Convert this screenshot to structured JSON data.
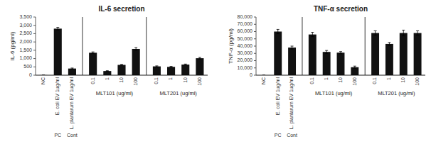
{
  "chart_data": [
    {
      "type": "bar",
      "title": "IL-6 secretion",
      "y_label": "IL-6 (pg/ml)",
      "categories": [
        "NC",
        "PC",
        "Cont",
        "0.1",
        "1",
        "10",
        "100",
        "0.1",
        "1",
        "10",
        "100"
      ],
      "long_labels": [
        null,
        "E. coli EV 1ug/ml",
        "L. plantarum EV 1ug/ml",
        null,
        null,
        null,
        null,
        null,
        null,
        null,
        null
      ],
      "category_groups": [
        null,
        null,
        null,
        "MLT101 (ug/ml)",
        "MLT101 (ug/ml)",
        "MLT101 (ug/ml)",
        "MLT101 (ug/ml)",
        "MLT201 (ug/ml)",
        "MLT201 (ug/ml)",
        "MLT201 (ug/ml)",
        "MLT201 (ug/ml)"
      ],
      "values": [
        5,
        2800,
        400,
        1350,
        250,
        620,
        1580,
        530,
        500,
        640,
        1020
      ],
      "errors": [
        0,
        80,
        30,
        50,
        20,
        30,
        80,
        30,
        30,
        30,
        50
      ],
      "color": "#111111",
      "ylim": [
        0,
        3500
      ],
      "yticks": [
        0,
        500,
        {
          "value": 1000,
          "label": "1,000"
        },
        {
          "value": 1500,
          "label": "1,500"
        },
        {
          "value": 2000,
          "label": "2,000"
        },
        {
          "value": 2500,
          "label": "2,500"
        },
        {
          "value": 3000,
          "label": "3,000"
        },
        {
          "value": 3500,
          "label": "3,500"
        }
      ]
    },
    {
      "type": "bar",
      "title": "TNF-α secretion",
      "y_label": "TNF-α (pg/ml)",
      "categories": [
        "NC",
        "PC",
        "Cont",
        "0.1",
        "1",
        "10",
        "100",
        "0.1",
        "1",
        "10",
        "100"
      ],
      "long_labels": [
        null,
        "E. coli EV 1ug/ml",
        "L. plantarum EV 1ug/ml",
        null,
        null,
        null,
        null,
        null,
        null,
        null,
        null
      ],
      "category_groups": [
        null,
        null,
        null,
        "MLT101 (ug/ml)",
        "MLT101 (ug/ml)",
        "MLT101 (ug/ml)",
        "MLT101 (ug/ml)",
        "MLT201 (ug/ml)",
        "MLT201 (ug/ml)",
        "MLT201 (ug/ml)",
        "MLT201 (ug/ml)"
      ],
      "values": [
        0,
        60000,
        38000,
        56000,
        32000,
        31000,
        11000,
        58000,
        43000,
        58000,
        58000
      ],
      "errors": [
        0,
        3000,
        2000,
        3000,
        2000,
        1500,
        1500,
        3000,
        2000,
        4000,
        3000
      ],
      "color": "#111111",
      "ylim": [
        0,
        80000
      ],
      "yticks": [
        0,
        {
          "value": 10000,
          "label": "10,000"
        },
        {
          "value": 20000,
          "label": "20,000"
        },
        {
          "value": 30000,
          "label": "30,000"
        },
        {
          "value": 40000,
          "label": "40,000"
        },
        {
          "value": 50000,
          "label": "50,000"
        },
        {
          "value": 60000,
          "label": "60,000"
        },
        {
          "value": 70000,
          "label": "70,000"
        },
        {
          "value": 80000,
          "label": "80,000"
        }
      ]
    }
  ]
}
